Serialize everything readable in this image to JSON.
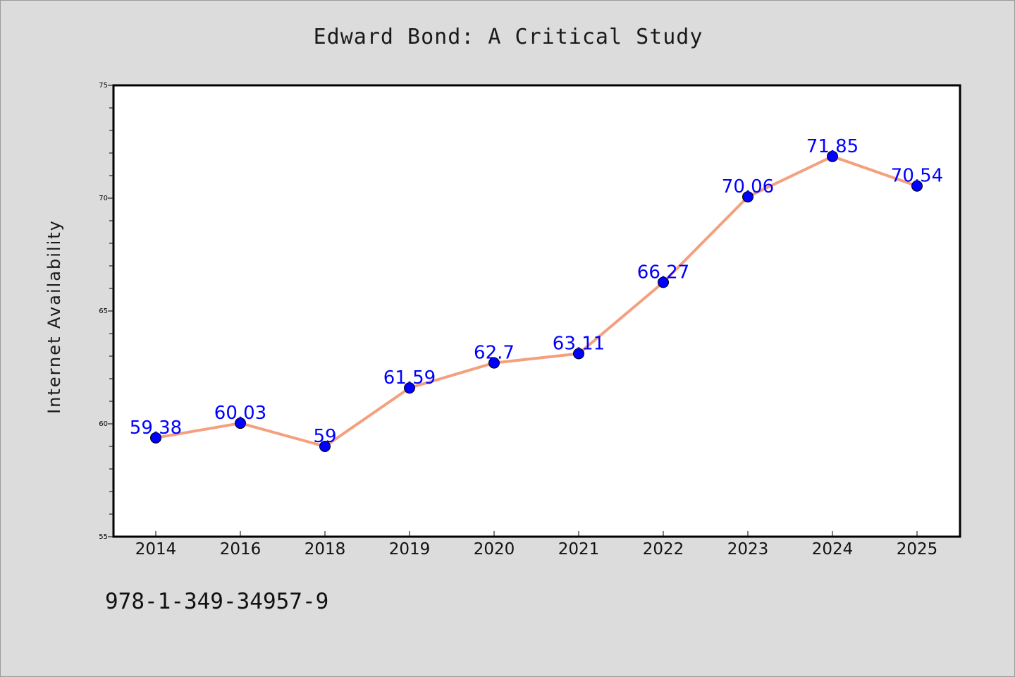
{
  "figure": {
    "background": "#dcdcdc",
    "footer_text": "978-1-349-34957-9"
  },
  "chart_data": {
    "type": "line",
    "title": "Edward Bond: A Critical Study",
    "xlabel": "",
    "ylabel": "Internet Availability",
    "categories": [
      "2014",
      "2016",
      "2018",
      "2019",
      "2020",
      "2021",
      "2022",
      "2023",
      "2024",
      "2025"
    ],
    "series": [
      {
        "values": [
          59.38,
          60.03,
          59,
          61.59,
          62.7,
          63.11,
          66.27,
          70.06,
          71.85,
          70.54
        ],
        "labels": [
          "59.38",
          "60.03",
          "59",
          "61.59",
          "62.7",
          "63.11",
          "66.27",
          "70.06",
          "71.85",
          "70.54"
        ],
        "line_color": "#f4a07e",
        "marker_color": "#0000ff",
        "label_color": "#0000ff"
      }
    ],
    "ylim": [
      55,
      75
    ],
    "y_ticks": [
      55,
      60,
      65,
      70,
      75
    ],
    "y_minor_step": 1,
    "grid": false,
    "legend": "none",
    "plot_background": "#ffffff"
  }
}
